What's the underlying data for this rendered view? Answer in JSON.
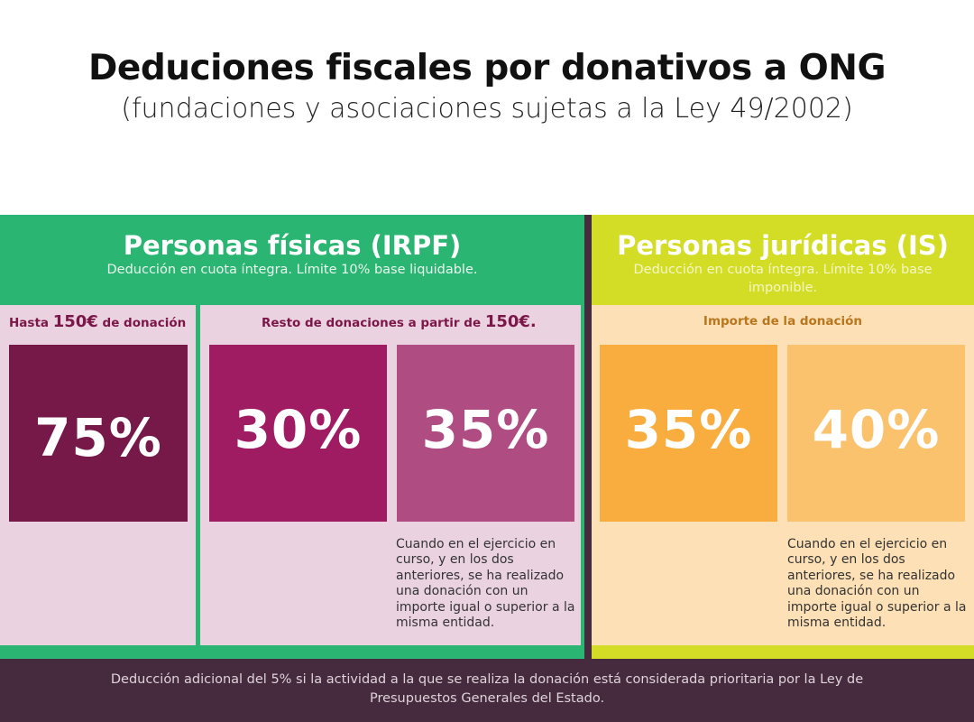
{
  "header": {
    "title": "Deduciones fiscales por donativos a ONG",
    "subtitle": "(fundaciones y asociaciones sujetas a la Ley 49/2002)"
  },
  "personas_fisicas": {
    "title": "Personas físicas (IRPF)",
    "note": "Deducción en cuota íntegra. Límite 10% base liquidable.",
    "tramo1": {
      "caption_pre": "Hasta ",
      "caption_amount": "150€",
      "caption_post": " de donación",
      "percent": "75%"
    },
    "tramo2": {
      "caption_pre": "Resto de donaciones a partir de ",
      "caption_amount": "150€.",
      "percent_a": "30%",
      "percent_b": "35%",
      "condition": "Cuando en el ejercicio en curso, y en los dos anteriores, se ha realizado una donación con un importe igual o superior a la misma entidad."
    }
  },
  "personas_juridicas": {
    "title": "Personas jurídicas (IS)",
    "note": "Deducción en cuota íntegra. Límite 10% base imponible.",
    "caption": "Importe de la donación",
    "percent_a": "35%",
    "percent_b": "40%",
    "condition": "Cuando en el ejercicio en curso, y en los dos anteriores, se ha realizado una donación con un importe igual o superior a la misma entidad."
  },
  "footer": {
    "text": "Deducción adicional del 5% si la actividad a la que se realiza la donación está considerada prioritaria por la Ley de Presupuestos Generales del Estado."
  },
  "colors": {
    "green": "#2ab572",
    "lime": "#d4dd25",
    "dark_plum": "#462b3e",
    "wine": "#761848",
    "magenta": "#a01c62",
    "mauve": "#af4c82",
    "orange": "#f9ad3e",
    "light_orange": "#fbc26e",
    "pink_bg": "#ead2e0",
    "peach_bg": "#fde0b5"
  }
}
